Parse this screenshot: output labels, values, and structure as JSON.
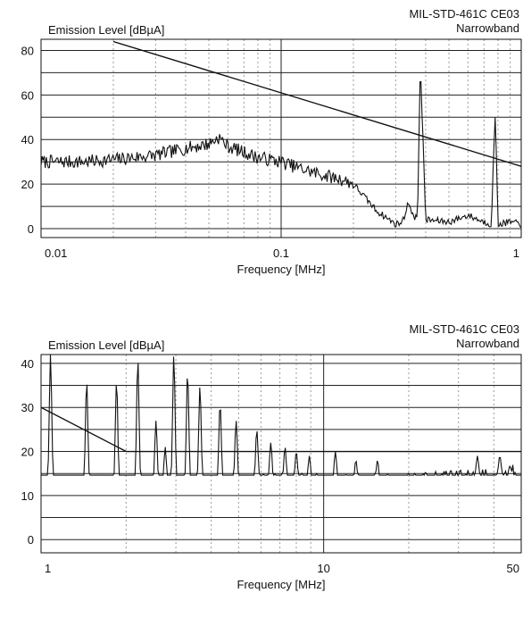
{
  "chart_data": [
    {
      "type": "line",
      "title": "MIL-STD-461C CE03",
      "subtitle": "Narrowband",
      "ylabel": "Emission Level [dBµA]",
      "xlabel": "Frequency [MHz]",
      "xscale": "log",
      "xlim": [
        0.01,
        1
      ],
      "ylim": [
        -4,
        85
      ],
      "grid": true,
      "y_ticks": [
        0,
        20,
        40,
        60,
        80
      ],
      "x_ticks": [
        {
          "value": 0.01,
          "label": "0.01"
        },
        {
          "value": 0.1,
          "label": "0.1"
        },
        {
          "value": 1,
          "label": "1"
        }
      ],
      "series": [
        {
          "role": "limit",
          "x": [
            0.02,
            1
          ],
          "y": [
            84,
            28
          ]
        },
        {
          "role": "measured",
          "x": [
            0.01,
            0.015,
            0.02,
            0.03,
            0.04,
            0.05,
            0.055,
            0.06,
            0.08,
            0.1,
            0.12,
            0.15,
            0.18,
            0.2,
            0.25,
            0.3,
            0.32,
            0.34,
            0.36,
            0.37,
            0.38,
            0.4,
            0.5,
            0.6,
            0.7,
            0.75,
            0.78,
            0.8,
            0.9,
            1.0
          ],
          "y": [
            30,
            30,
            31,
            33,
            36,
            38,
            41,
            37,
            32,
            30,
            27,
            24,
            22,
            20,
            8,
            2,
            3,
            12,
            4,
            6,
            75,
            4,
            3,
            6,
            3,
            2,
            53,
            2,
            3,
            2
          ]
        }
      ]
    },
    {
      "type": "line",
      "title": "MIL-STD-461C CE03",
      "subtitle": "Narrowband",
      "ylabel": "Emission Level [dBµA]",
      "xlabel": "Frequency [MHz]",
      "xscale": "log",
      "xlim": [
        1,
        50
      ],
      "ylim": [
        -3,
        42
      ],
      "grid": true,
      "y_ticks": [
        0,
        10,
        20,
        30,
        40
      ],
      "x_ticks": [
        {
          "value": 1,
          "label": "1"
        },
        {
          "value": 10,
          "label": "10"
        },
        {
          "value": 50,
          "label": "50"
        }
      ],
      "series": [
        {
          "role": "limit",
          "x": [
            1,
            2,
            50
          ],
          "y": [
            30,
            20,
            20
          ]
        },
        {
          "role": "measured",
          "baseline": [
            [
              1,
              12
            ],
            [
              3,
              12
            ],
            [
              6,
              13
            ],
            [
              10,
              13
            ],
            [
              20,
              13
            ],
            [
              50,
              15
            ]
          ],
          "peaks": [
            {
              "x": 1.08,
              "y": 42
            },
            {
              "x": 1.45,
              "y": 36
            },
            {
              "x": 1.85,
              "y": 36
            },
            {
              "x": 2.2,
              "y": 41
            },
            {
              "x": 2.55,
              "y": 27
            },
            {
              "x": 2.75,
              "y": 21
            },
            {
              "x": 2.95,
              "y": 42
            },
            {
              "x": 3.3,
              "y": 38
            },
            {
              "x": 3.65,
              "y": 35
            },
            {
              "x": 4.3,
              "y": 31
            },
            {
              "x": 4.9,
              "y": 27
            },
            {
              "x": 5.8,
              "y": 25
            },
            {
              "x": 6.5,
              "y": 22
            },
            {
              "x": 7.3,
              "y": 21
            },
            {
              "x": 8.0,
              "y": 20
            },
            {
              "x": 8.9,
              "y": 19
            },
            {
              "x": 11.0,
              "y": 20
            },
            {
              "x": 13.0,
              "y": 18
            },
            {
              "x": 15.5,
              "y": 18
            },
            {
              "x": 35.0,
              "y": 19
            },
            {
              "x": 42.0,
              "y": 19
            }
          ]
        }
      ]
    }
  ]
}
